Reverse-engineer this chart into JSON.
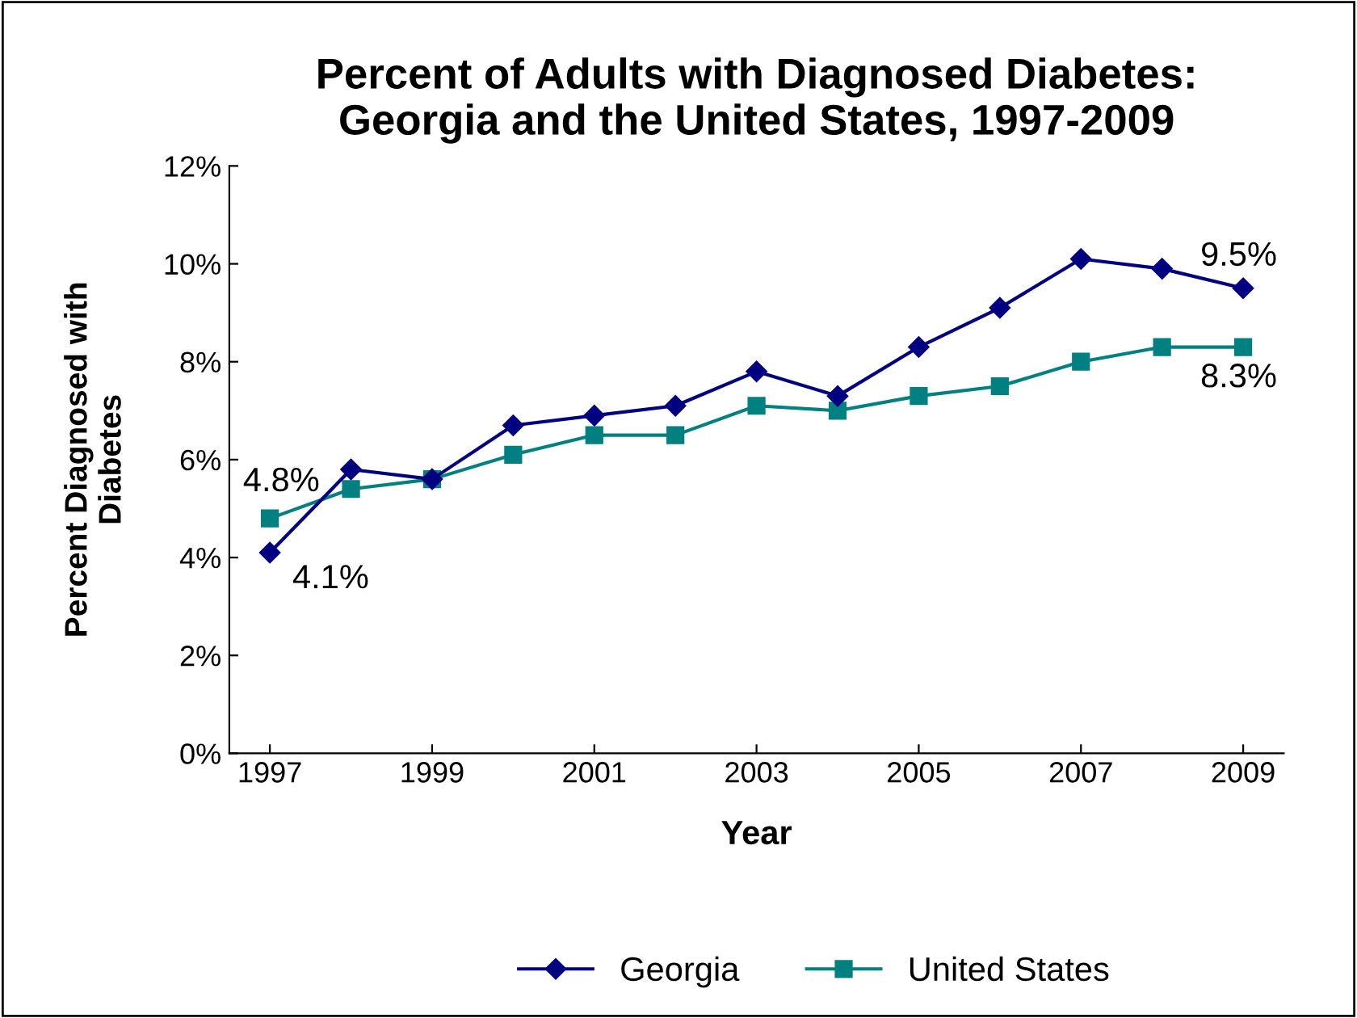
{
  "chart_data": {
    "type": "line",
    "title": "Percent of Adults with Diagnosed Diabetes:\nGeorgia and the United States, 1997-2009",
    "xlabel": "Year",
    "ylabel": "Percent Diagnosed with\nDiabetes",
    "x": [
      1997,
      1998,
      1999,
      2000,
      2001,
      2002,
      2003,
      2004,
      2005,
      2006,
      2007,
      2008,
      2009
    ],
    "series": [
      {
        "name": "Georgia",
        "color": "#000080",
        "marker": "diamond",
        "values": [
          4.1,
          5.8,
          5.6,
          6.7,
          6.9,
          7.1,
          7.8,
          7.3,
          8.3,
          9.1,
          10.1,
          9.9,
          9.5
        ],
        "value_labels": [
          "4.1%",
          null,
          null,
          null,
          null,
          null,
          null,
          null,
          null,
          null,
          null,
          null,
          "9.5%"
        ]
      },
      {
        "name": "United States",
        "color": "#008080",
        "marker": "square",
        "values": [
          4.8,
          5.4,
          5.6,
          6.1,
          6.5,
          6.5,
          7.1,
          7.0,
          7.3,
          7.5,
          8.0,
          8.3,
          8.3
        ],
        "value_labels": [
          "4.8%",
          null,
          null,
          null,
          null,
          null,
          null,
          null,
          null,
          null,
          null,
          null,
          "8.3%"
        ]
      }
    ],
    "xlim": [
      1996.5,
      2009.5
    ],
    "xticks": [
      1997,
      1999,
      2001,
      2003,
      2005,
      2007,
      2009
    ],
    "ylim": [
      0,
      12
    ],
    "yticks": [
      {
        "value": 0,
        "label": "0%"
      },
      {
        "value": 2,
        "label": "2%"
      },
      {
        "value": 4,
        "label": "4%"
      },
      {
        "value": 6,
        "label": "6%"
      },
      {
        "value": 8,
        "label": "8%"
      },
      {
        "value": 10,
        "label": "10%"
      },
      {
        "value": 12,
        "label": "12%"
      }
    ],
    "grid": false,
    "legend": "bottom",
    "line_style": "solid"
  }
}
